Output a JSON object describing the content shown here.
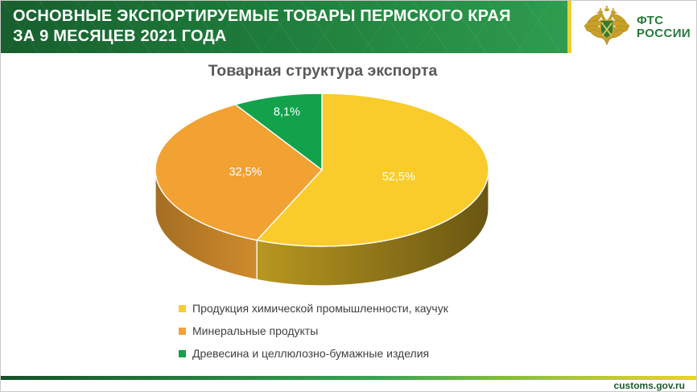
{
  "header": {
    "title_line1": "ОСНОВНЫЕ ЭКСПОРТИРУЕМЫЕ ТОВАРЫ ПЕРМСКОГО КРАЯ",
    "title_line2": "ЗА 9 МЕСЯЦЕВ 2021 ГОДА",
    "logo": {
      "emblem_icon": "fts-customs-emblem",
      "org_line1": "ФТС",
      "org_line2": "РОССИИ",
      "text_color": "#267c3b"
    }
  },
  "chart_data": {
    "type": "pie",
    "style": "3d",
    "title": "Товарная структура экспорта",
    "categories": [
      "Продукция химической промышленности, каучук",
      "Минеральные продукты",
      "Древесина и целлюлозно-бумажные изделия"
    ],
    "values": [
      52.5,
      32.5,
      8.1
    ],
    "labels": [
      "52,5%",
      "32,5%",
      "8,1%"
    ],
    "colors": [
      "#f9cc2b",
      "#f1a233",
      "#12a24c"
    ],
    "start_angle_deg": 0,
    "direction": "clockwise",
    "legend_position": "bottom-left",
    "label_color": "#ffffff",
    "title_color": "#595959"
  },
  "footer": {
    "site": "customs.gov.ru",
    "accent_colors": [
      "#16512a",
      "#3da353",
      "#eed226"
    ]
  }
}
